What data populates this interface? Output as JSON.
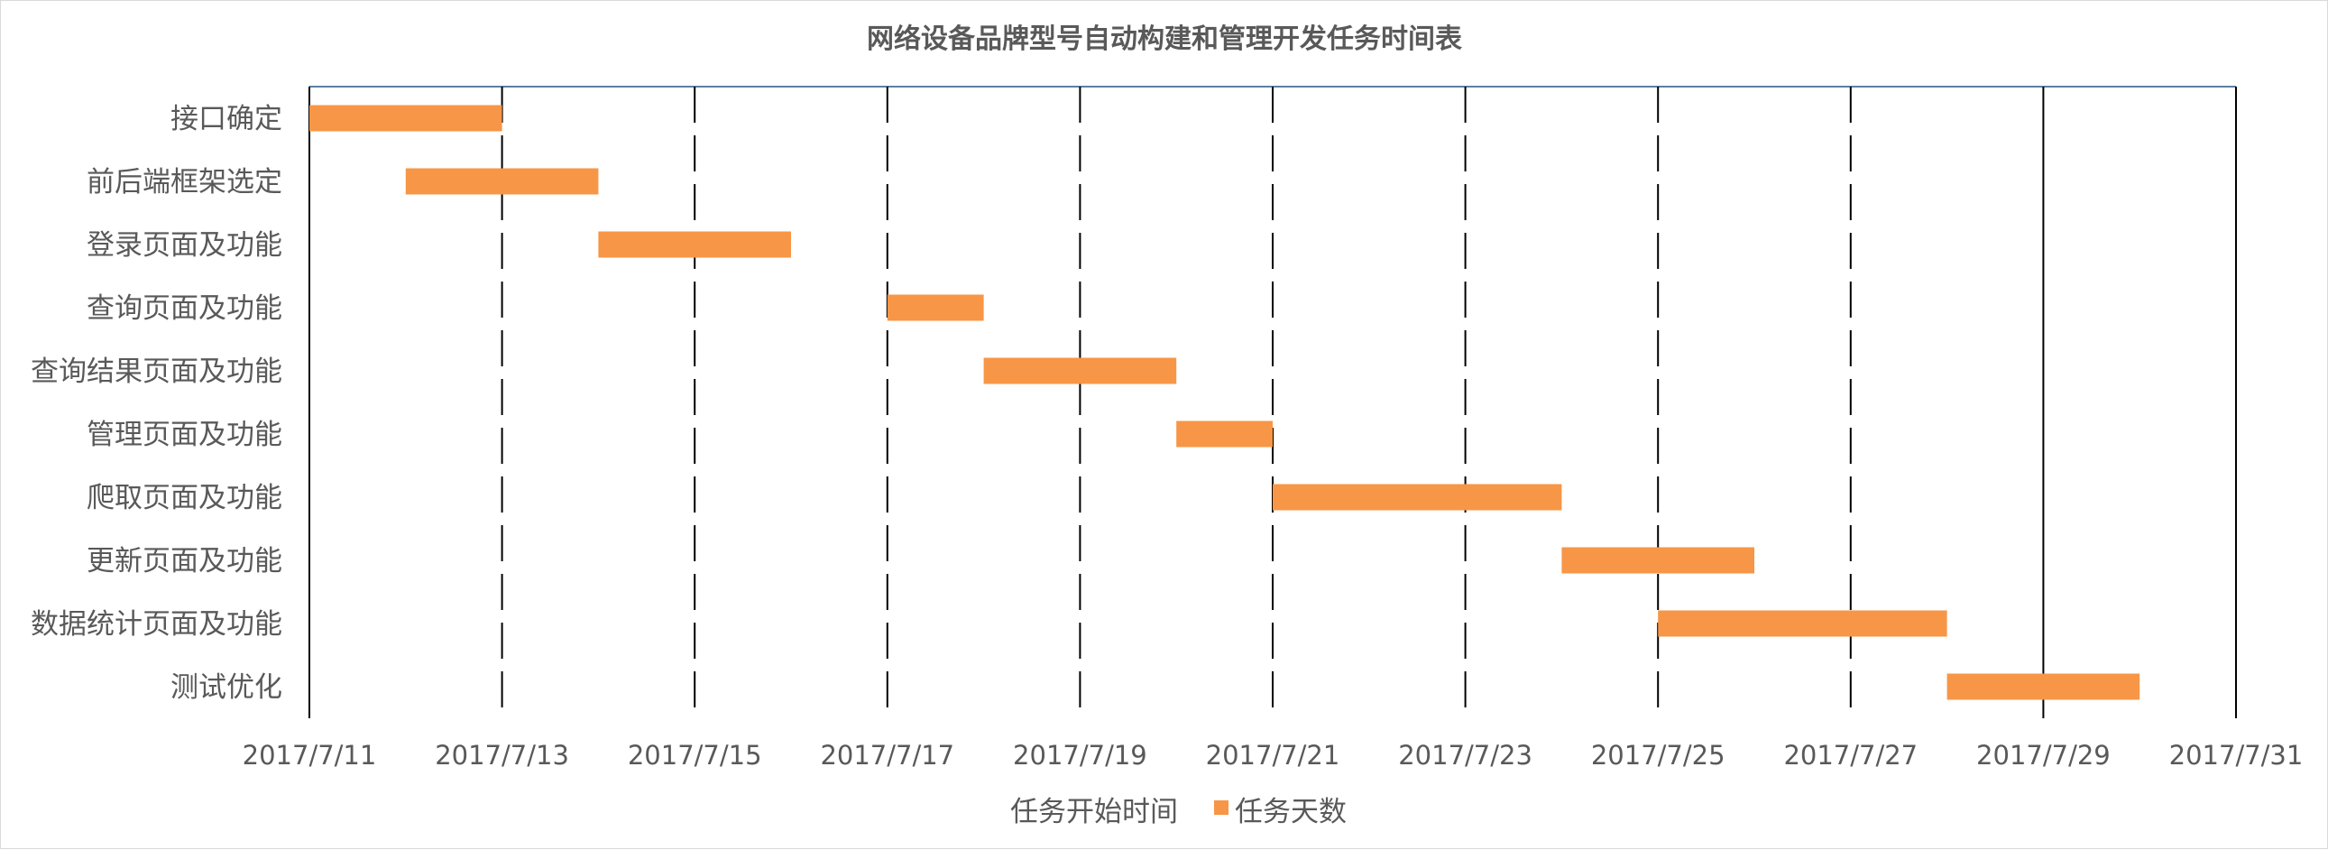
{
  "chart_data": {
    "type": "bar",
    "orientation": "horizontal-stacked-gantt",
    "title": "网络设备品牌型号自动构建和管理开发任务时间表",
    "categories": [
      "接口确定",
      "前后端框架选定",
      "登录页面及功能",
      "查询页面及功能",
      "查询结果页面及功能",
      "管理页面及功能",
      "爬取页面及功能",
      "更新页面及功能",
      "数据统计页面及功能",
      "测试优化"
    ],
    "series": [
      {
        "name": "任务开始时间",
        "visible": false,
        "values": [
          "2017-07-11",
          "2017-07-12",
          "2017-07-14",
          "2017-07-17",
          "2017-07-18",
          "2017-07-20",
          "2017-07-21",
          "2017-07-24",
          "2017-07-25",
          "2017-07-28"
        ]
      },
      {
        "name": "任务天数",
        "color": "#f79646",
        "values": [
          2,
          2,
          2,
          1,
          2,
          1,
          3,
          2,
          3,
          2
        ]
      }
    ],
    "xlim": [
      "2017-07-11",
      "2017-07-31"
    ],
    "x_ticks": [
      "2017/7/11",
      "2017/7/13",
      "2017/7/15",
      "2017/7/17",
      "2017/7/19",
      "2017/7/21",
      "2017/7/23",
      "2017/7/25",
      "2017/7/27",
      "2017/7/29",
      "2017/7/31"
    ],
    "grid": true,
    "legend_position": "bottom",
    "legend": [
      "任务开始时间",
      "任务天数"
    ]
  }
}
